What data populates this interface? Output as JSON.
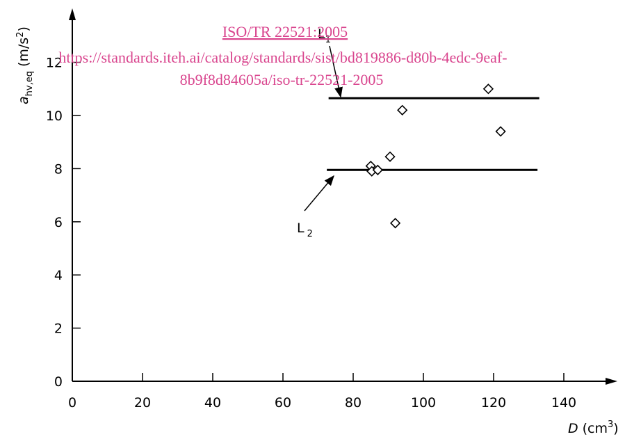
{
  "chart_data": {
    "type": "scatter",
    "xlim": [
      0,
      155
    ],
    "ylim": [
      0,
      14
    ],
    "x_ticks": [
      0,
      20,
      40,
      60,
      80,
      100,
      120,
      140
    ],
    "y_ticks": [
      0,
      2,
      4,
      6,
      8,
      10,
      12
    ],
    "xlabel": {
      "symbol": "D",
      "unit": "(cm",
      "sup": "3",
      "close": ")"
    },
    "ylabel": {
      "symbol": "a",
      "subscript": "hv,eq",
      "unit": "(m/s",
      "sup": "2",
      "close": ")"
    },
    "grid": false,
    "series": [
      {
        "marker": "diamond",
        "points": [
          {
            "x": 85,
            "y": 8.1
          },
          {
            "x": 85.3,
            "y": 7.9
          },
          {
            "x": 87,
            "y": 7.95
          },
          {
            "x": 90.5,
            "y": 8.45
          },
          {
            "x": 92,
            "y": 5.95
          },
          {
            "x": 94,
            "y": 10.2
          },
          {
            "x": 118.5,
            "y": 11.0
          },
          {
            "x": 122,
            "y": 9.4
          }
        ]
      }
    ],
    "reference_lines": [
      {
        "label": "L",
        "sub": "1",
        "y": 10.65,
        "x_start": 73,
        "x_end": 133
      },
      {
        "label": "L",
        "sub": "2",
        "y": 7.95,
        "x_start": 72.5,
        "x_end": 132.5
      }
    ]
  },
  "watermark": {
    "line1": "ISO/TR 22521:2005",
    "line2": "https://standards.iteh.ai/catalog/standards/sist/bd819886-d80b-4edc-9eaf-",
    "line3": "8b9f8d84605a/iso-tr-22521-2005"
  },
  "colors": {
    "axis": "#000000",
    "marker": "#000000",
    "watermark": "#d9458e"
  }
}
